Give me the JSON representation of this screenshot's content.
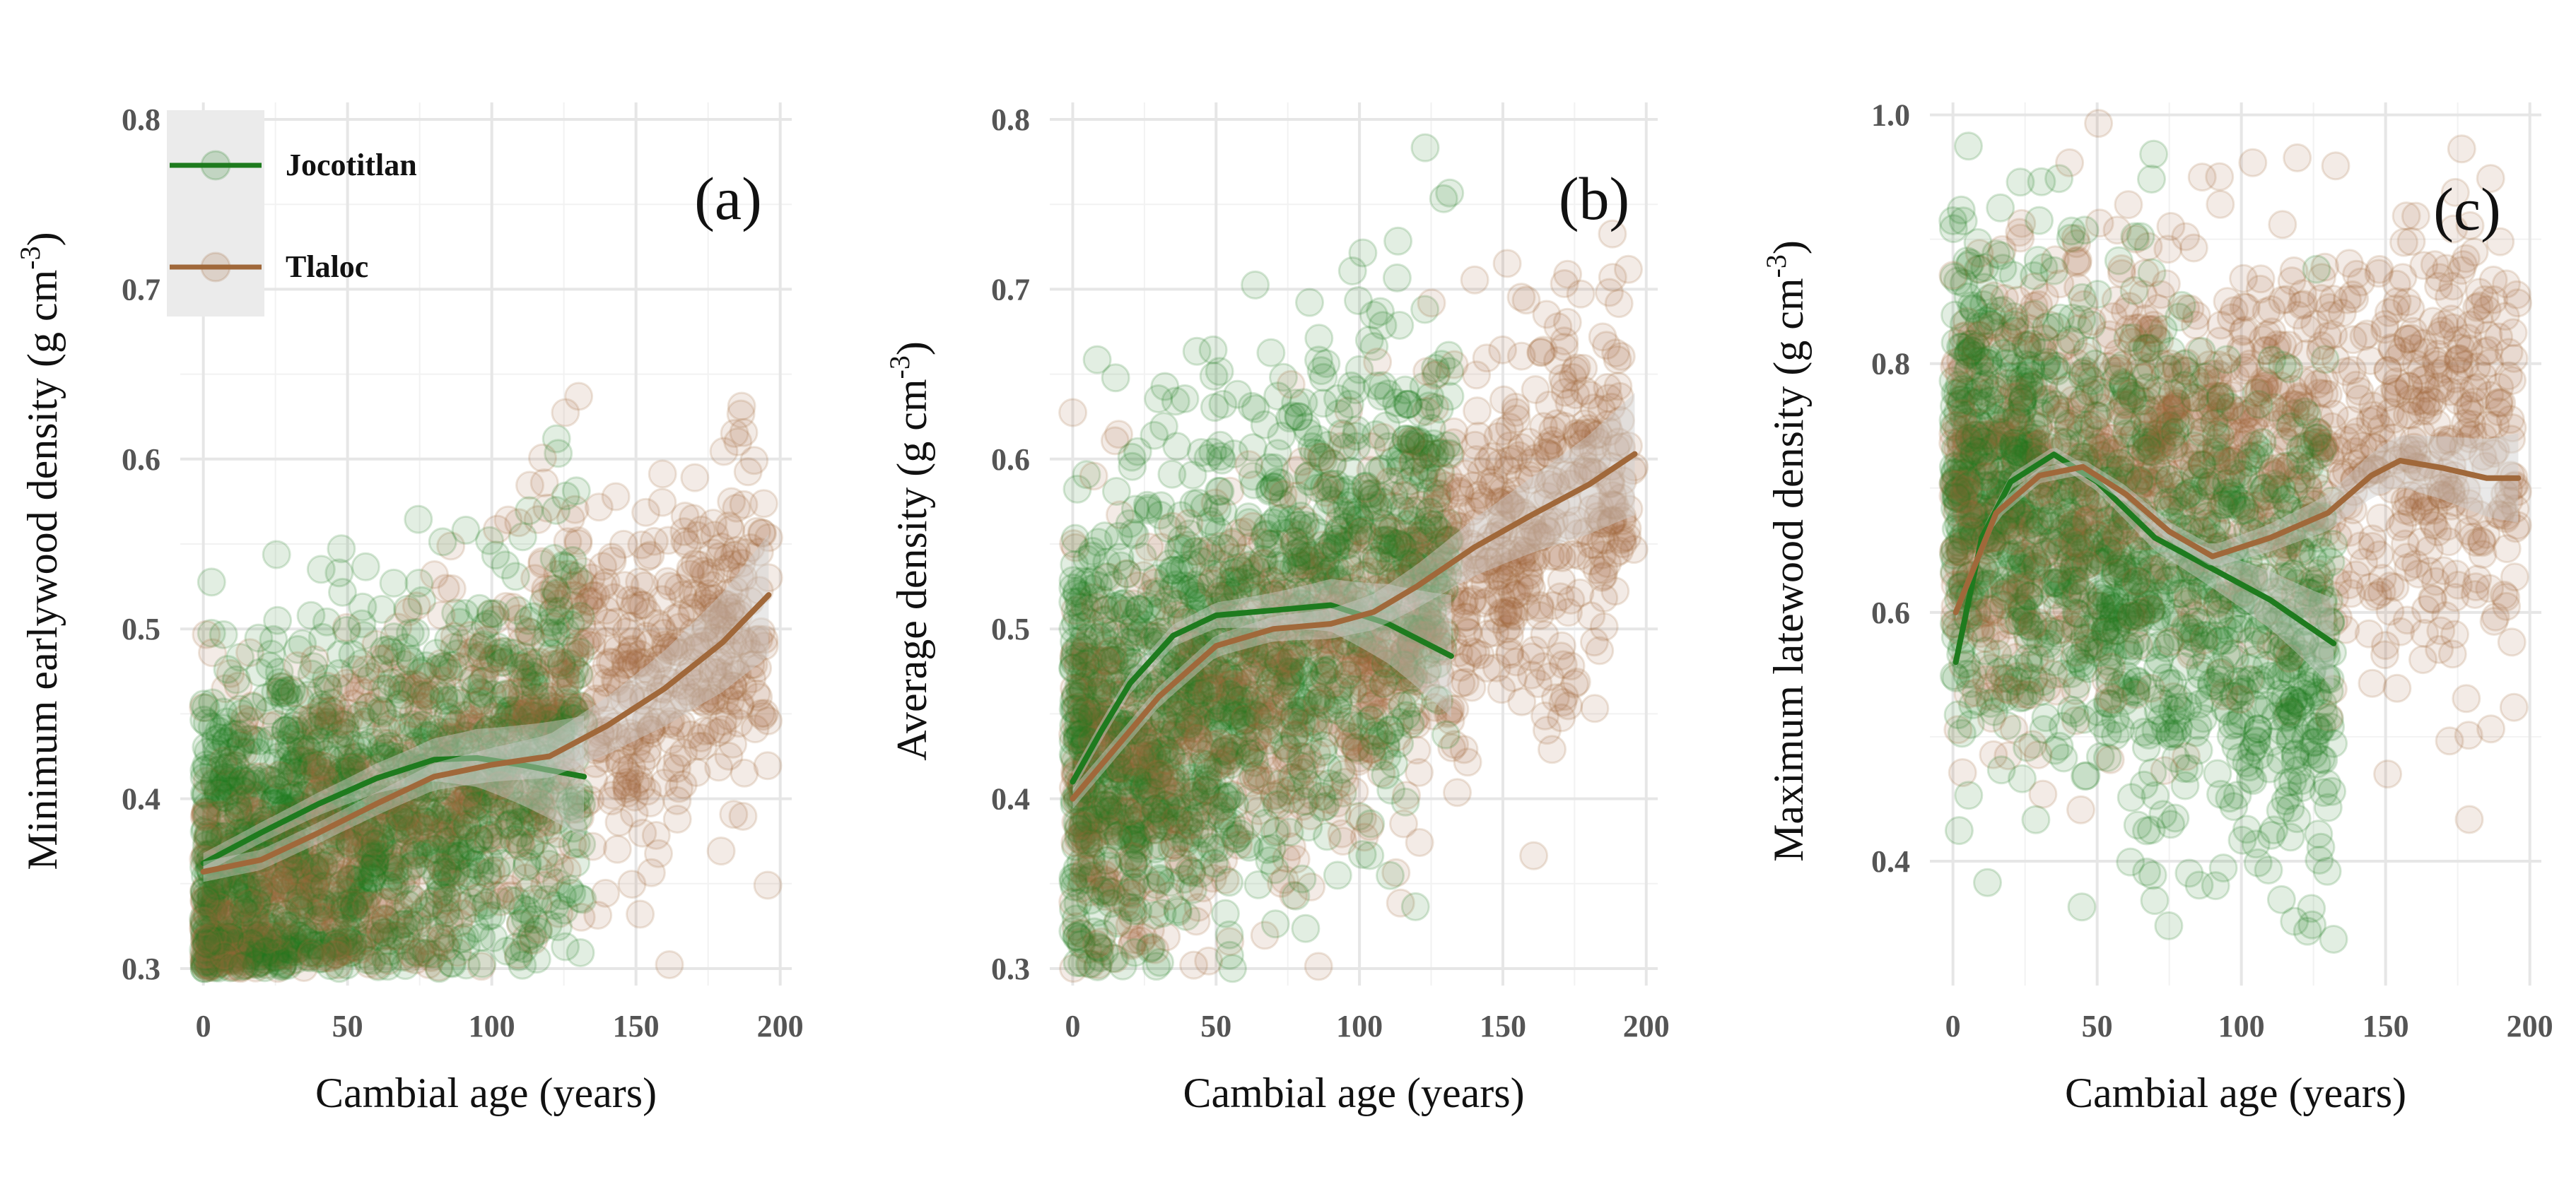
{
  "chart_data": [
    {
      "type": "scatter",
      "panel": "(a)",
      "title": "",
      "xlabel": "Cambial age (years)",
      "ylabel": "Minimum earlywood density (g cm-3)",
      "ylabel_main": "Minimum earlywood density (g cm",
      "ylabel_sup": "-3",
      "ylabel_tail": ")",
      "xlim": [
        -8,
        204
      ],
      "ylim": [
        0.29,
        0.81
      ],
      "xticks": [
        0,
        50,
        100,
        150,
        200
      ],
      "yticks": [
        0.3,
        0.4,
        0.5,
        0.6,
        0.7,
        0.8
      ],
      "series": [
        {
          "name": "Jocotitlan",
          "color": "#1e7b1e",
          "x_max": 132,
          "cloud": {
            "mean0": 0.35,
            "mean_slope": 0.00065,
            "sd": 0.06,
            "floor": 0.3
          },
          "smooth": {
            "x": [
              0,
              20,
              40,
              60,
              80,
              95,
              110,
              132
            ],
            "y": [
              0.362,
              0.38,
              0.397,
              0.412,
              0.423,
              0.424,
              0.42,
              0.413
            ]
          }
        },
        {
          "name": "Tlaloc",
          "color": "#a0683a",
          "x_max": 196,
          "cloud": {
            "mean0": 0.34,
            "mean_slope": 0.00085,
            "sd": 0.055,
            "floor": 0.3
          },
          "smooth": {
            "x": [
              0,
              20,
              40,
              60,
              80,
              100,
              120,
              140,
              160,
              180,
              196
            ],
            "y": [
              0.357,
              0.364,
              0.38,
              0.397,
              0.413,
              0.42,
              0.425,
              0.443,
              0.465,
              0.492,
              0.52
            ]
          }
        }
      ]
    },
    {
      "type": "scatter",
      "panel": "(b)",
      "title": "",
      "xlabel": "Cambial age (years)",
      "ylabel": "Average density (g cm-3)",
      "ylabel_main": "Average density (g cm",
      "ylabel_sup": "-3",
      "ylabel_tail": ")",
      "xlim": [
        -8,
        204
      ],
      "ylim": [
        0.29,
        0.81
      ],
      "xticks": [
        0,
        50,
        100,
        150,
        200
      ],
      "yticks": [
        0.3,
        0.4,
        0.5,
        0.6,
        0.7,
        0.8
      ],
      "series": [
        {
          "name": "Jocotitlan",
          "color": "#1e7b1e",
          "x_max": 132,
          "cloud": {
            "mean0": 0.42,
            "mean_slope": 0.0011,
            "sd": 0.07,
            "floor": 0.3
          },
          "smooth": {
            "x": [
              0,
              10,
              20,
              35,
              50,
              70,
              90,
              110,
              132
            ],
            "y": [
              0.41,
              0.44,
              0.468,
              0.496,
              0.508,
              0.511,
              0.514,
              0.503,
              0.484
            ]
          }
        },
        {
          "name": "Tlaloc",
          "color": "#a0683a",
          "x_max": 196,
          "cloud": {
            "mean0": 0.4,
            "mean_slope": 0.001,
            "sd": 0.06,
            "floor": 0.3
          },
          "smooth": {
            "x": [
              0,
              15,
              30,
              50,
              70,
              90,
              105,
              120,
              140,
              160,
              180,
              196
            ],
            "y": [
              0.4,
              0.43,
              0.46,
              0.49,
              0.5,
              0.503,
              0.51,
              0.525,
              0.548,
              0.567,
              0.585,
              0.603
            ]
          }
        }
      ]
    },
    {
      "type": "scatter",
      "panel": "(c)",
      "title": "",
      "xlabel": "Cambial age (years)",
      "ylabel": "Maximum latewood density (g cm-3)",
      "ylabel_main": "Maximum latewood density (g cm",
      "ylabel_sup": "-3",
      "ylabel_tail": ")",
      "xlim": [
        -8,
        204
      ],
      "ylim": [
        0.3,
        1.01
      ],
      "xticks": [
        0,
        50,
        100,
        150,
        200
      ],
      "yticks": [
        0.4,
        0.6,
        0.8,
        1.0
      ],
      "ytick_labels": [
        "0.4",
        "0.6",
        "0.8",
        "1.0"
      ],
      "series": [
        {
          "name": "Jocotitlan",
          "color": "#1e7b1e",
          "x_max": 132,
          "cloud": {
            "mean0": 0.72,
            "mean_slope": -0.0012,
            "sd": 0.1,
            "floor": 0.33
          },
          "smooth": {
            "x": [
              1,
              10,
              20,
              35,
              50,
              70,
              90,
              110,
              132
            ],
            "y": [
              0.56,
              0.66,
              0.705,
              0.727,
              0.705,
              0.66,
              0.635,
              0.61,
              0.575
            ]
          }
        },
        {
          "name": "Tlaloc",
          "color": "#a0683a",
          "x_max": 196,
          "cloud": {
            "mean0": 0.7,
            "mean_slope": 0.0002,
            "sd": 0.09,
            "floor": 0.33
          },
          "smooth": {
            "x": [
              1,
              15,
              30,
              45,
              60,
              75,
              90,
              110,
              130,
              145,
              155,
              170,
              185,
              196
            ],
            "y": [
              0.6,
              0.68,
              0.71,
              0.717,
              0.695,
              0.665,
              0.645,
              0.66,
              0.68,
              0.71,
              0.722,
              0.716,
              0.708,
              0.708
            ]
          }
        }
      ]
    }
  ],
  "legend": {
    "items": [
      {
        "label": "Jocotitlan",
        "color": "#1e7b1e"
      },
      {
        "label": "Tlaloc",
        "color": "#a0683a"
      }
    ],
    "placement": "top-left of panel (a)"
  }
}
